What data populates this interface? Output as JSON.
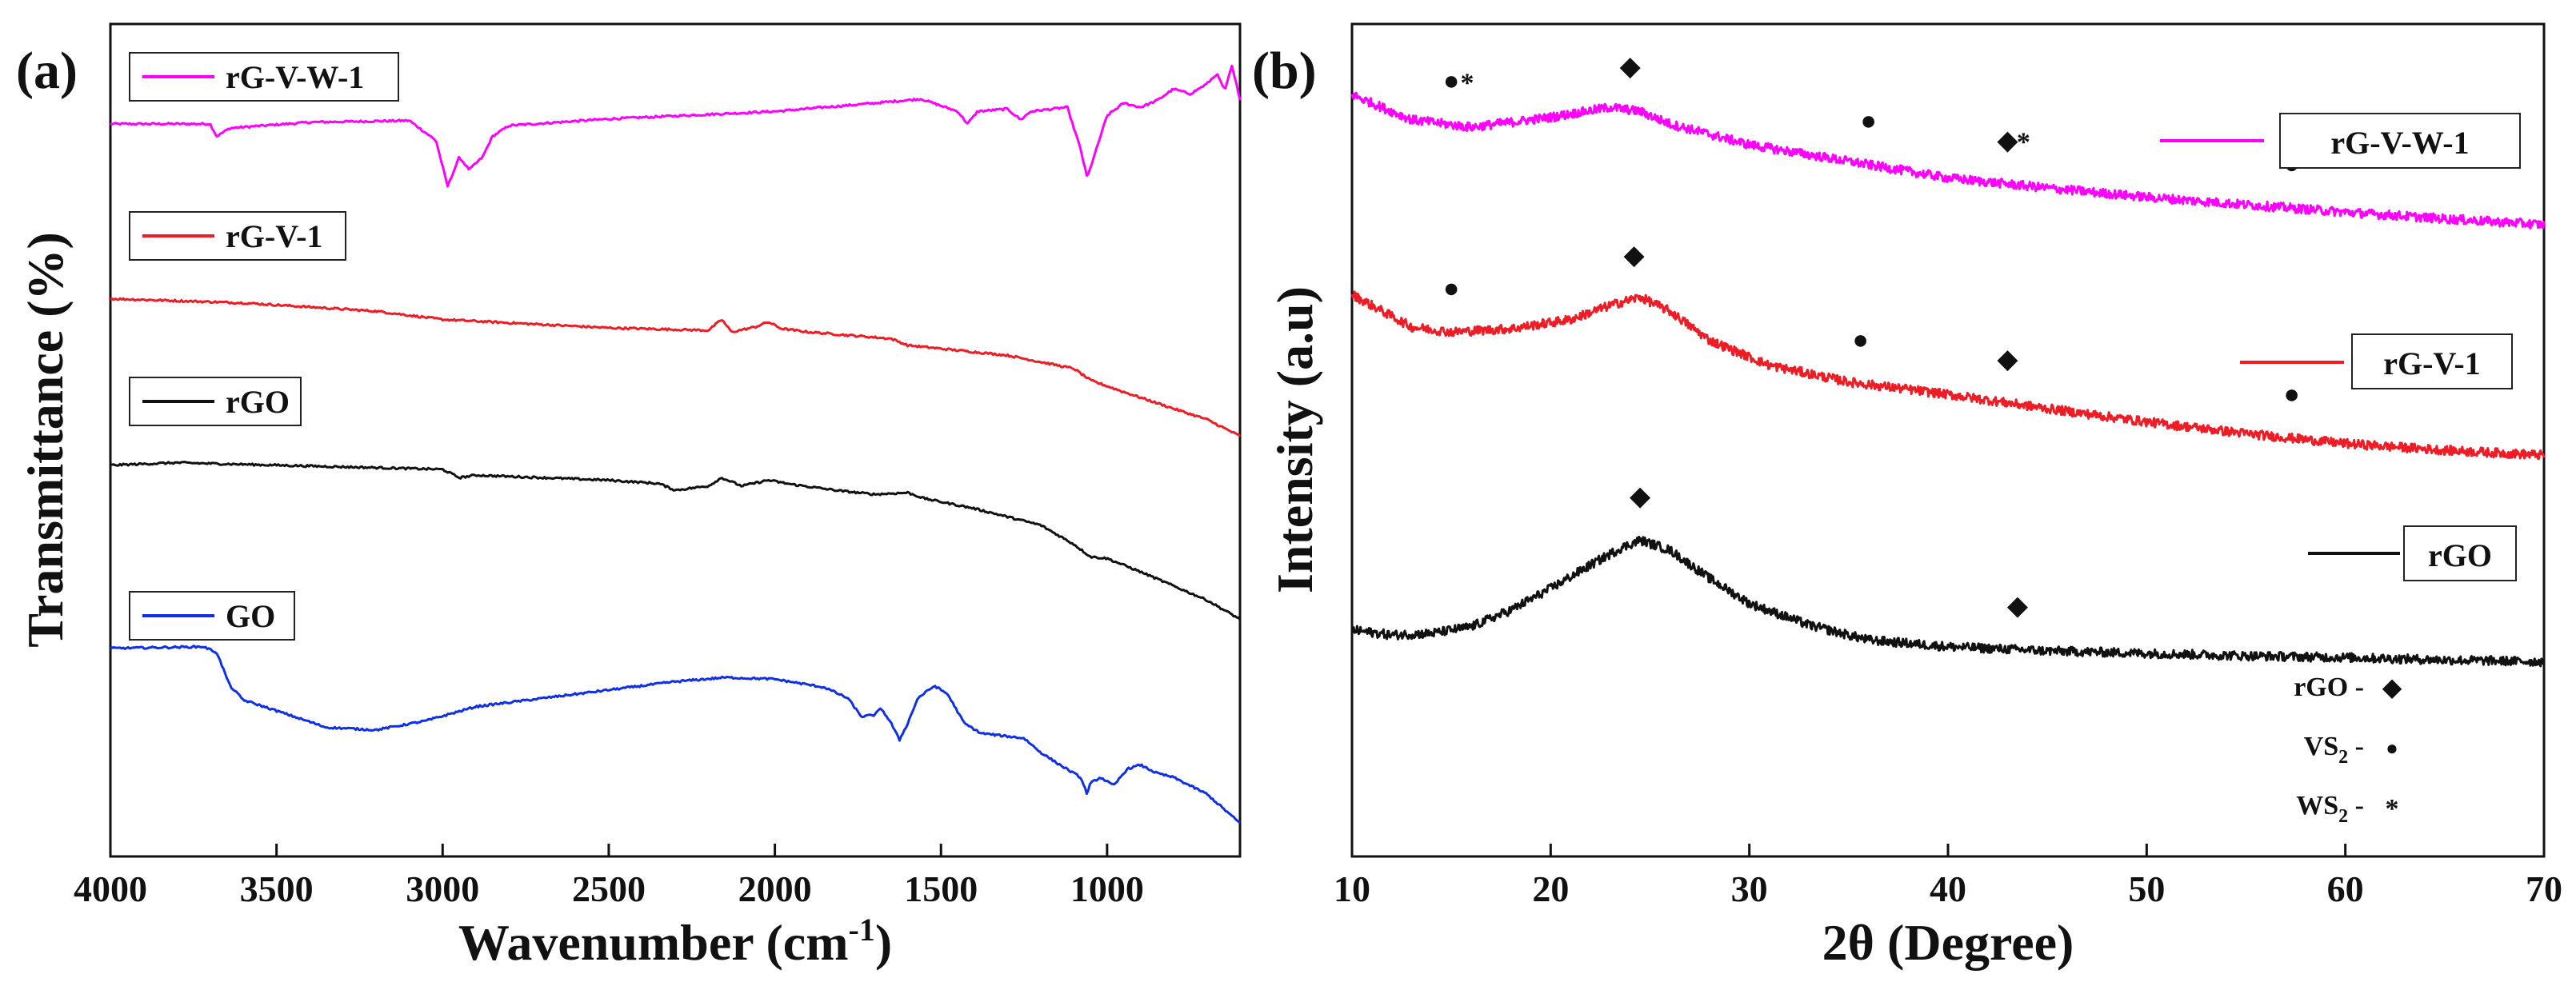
{
  "colors": {
    "rG-V-W-1": "#ff00ff",
    "rG-V-1": "#ee1c25",
    "rGO": "#111111",
    "GO": "#1030e8"
  },
  "chart_data": [
    {
      "panel": "(a)",
      "type": "line",
      "title": "",
      "xlabel": "Wavenumber (cm",
      "xlabel_sup": "-1",
      "xlabel_end": ")",
      "ylabel": "Transmittance (%)",
      "xlim": [
        4000,
        600
      ],
      "xticks": [
        4000,
        3500,
        3000,
        2500,
        2000,
        1500,
        1000
      ],
      "xtick_labels": [
        "4000",
        "3500",
        "3000",
        "2500",
        "2000",
        "1500",
        "1000"
      ],
      "yticks": [],
      "legend": [
        "rG-V-W-1",
        "rG-V-1",
        "rGO",
        "GO"
      ],
      "series": [
        {
          "name": "rG-V-W-1",
          "offset": 88,
          "points": [
            [
              4000,
              88
            ],
            [
              3700,
              88
            ],
            [
              3680,
              86.5
            ],
            [
              3640,
              87.5
            ],
            [
              3400,
              88.2
            ],
            [
              3100,
              88.4
            ],
            [
              3020,
              86
            ],
            [
              2985,
              80.5
            ],
            [
              2950,
              84
            ],
            [
              2920,
              82.5
            ],
            [
              2880,
              84
            ],
            [
              2850,
              86.5
            ],
            [
              2800,
              87.8
            ],
            [
              2500,
              88.6
            ],
            [
              2000,
              89.5
            ],
            [
              1700,
              90.5
            ],
            [
              1560,
              91
            ],
            [
              1450,
              89.5
            ],
            [
              1420,
              88
            ],
            [
              1390,
              89.5
            ],
            [
              1300,
              89.8
            ],
            [
              1260,
              88.5
            ],
            [
              1230,
              89.5
            ],
            [
              1120,
              90
            ],
            [
              1080,
              85
            ],
            [
              1060,
              81.5
            ],
            [
              1040,
              84
            ],
            [
              1000,
              89
            ],
            [
              950,
              90.5
            ],
            [
              900,
              90
            ],
            [
              850,
              90.8
            ],
            [
              800,
              92.2
            ],
            [
              750,
              91.6
            ],
            [
              700,
              92.8
            ],
            [
              670,
              94
            ],
            [
              645,
              92
            ],
            [
              625,
              95
            ],
            [
              600,
              91
            ]
          ]
        },
        {
          "name": "rG-V-1",
          "offset": 64,
          "points": [
            [
              4000,
              67
            ],
            [
              3600,
              66.5
            ],
            [
              3200,
              65.5
            ],
            [
              3000,
              64.5
            ],
            [
              2900,
              64.3
            ],
            [
              2500,
              63.5
            ],
            [
              2200,
              63.2
            ],
            [
              2160,
              64.5
            ],
            [
              2130,
              63
            ],
            [
              2060,
              63.6
            ],
            [
              2020,
              64.2
            ],
            [
              1980,
              63.4
            ],
            [
              1900,
              63
            ],
            [
              1650,
              62.2
            ],
            [
              1600,
              61.4
            ],
            [
              1300,
              60.2
            ],
            [
              1100,
              58.6
            ],
            [
              1050,
              57.2
            ],
            [
              950,
              55.8
            ],
            [
              800,
              53.8
            ],
            [
              700,
              52.5
            ],
            [
              600,
              50.5
            ]
          ]
        },
        {
          "name": "rGO",
          "offset": 44,
          "points": [
            [
              4000,
              47
            ],
            [
              3800,
              47.3
            ],
            [
              3500,
              47
            ],
            [
              3000,
              46.5
            ],
            [
              2950,
              45.5
            ],
            [
              2900,
              45.8
            ],
            [
              2500,
              45.2
            ],
            [
              2350,
              44.8
            ],
            [
              2300,
              44
            ],
            [
              2200,
              44.5
            ],
            [
              2160,
              45.5
            ],
            [
              2100,
              44.5
            ],
            [
              2020,
              45.2
            ],
            [
              1950,
              44.7
            ],
            [
              1800,
              43.9
            ],
            [
              1700,
              43.5
            ],
            [
              1600,
              43.7
            ],
            [
              1550,
              43
            ],
            [
              1400,
              41.8
            ],
            [
              1200,
              39.8
            ],
            [
              1100,
              37.5
            ],
            [
              1050,
              36
            ],
            [
              1000,
              35.8
            ],
            [
              900,
              34.2
            ],
            [
              800,
              32.5
            ],
            [
              700,
              30.8
            ],
            [
              600,
              28.5
            ]
          ]
        },
        {
          "name": "GO",
          "offset": 20,
          "points": [
            [
              4000,
              25
            ],
            [
              3720,
              25.2
            ],
            [
              3680,
              24.5
            ],
            [
              3640,
              20.5
            ],
            [
              3600,
              18.8
            ],
            [
              3500,
              17.5
            ],
            [
              3350,
              15.5
            ],
            [
              3200,
              15.2
            ],
            [
              3050,
              16.3
            ],
            [
              2900,
              18
            ],
            [
              2600,
              19.5
            ],
            [
              2300,
              21
            ],
            [
              2150,
              21.5
            ],
            [
              2000,
              21.3
            ],
            [
              1850,
              20.3
            ],
            [
              1780,
              19
            ],
            [
              1740,
              16.8
            ],
            [
              1700,
              17
            ],
            [
              1680,
              17.8
            ],
            [
              1650,
              16
            ],
            [
              1625,
              14
            ],
            [
              1600,
              16
            ],
            [
              1570,
              19
            ],
            [
              1520,
              20.5
            ],
            [
              1480,
              19.5
            ],
            [
              1430,
              16
            ],
            [
              1380,
              14.8
            ],
            [
              1250,
              14.2
            ],
            [
              1200,
              12.5
            ],
            [
              1150,
              11.2
            ],
            [
              1080,
              9.5
            ],
            [
              1060,
              7.5
            ],
            [
              1050,
              8.8
            ],
            [
              1020,
              9.5
            ],
            [
              980,
              8.5
            ],
            [
              940,
              10.5
            ],
            [
              900,
              11
            ],
            [
              850,
              10
            ],
            [
              800,
              9.5
            ],
            [
              700,
              7.5
            ],
            [
              600,
              4
            ]
          ]
        }
      ]
    },
    {
      "panel": "(b)",
      "type": "line",
      "title": "",
      "xlabel": "2θ (Degree)",
      "ylabel": "Intensity (a.u)",
      "xlim": [
        10,
        70
      ],
      "xticks": [
        10,
        20,
        30,
        40,
        50,
        60,
        70
      ],
      "xtick_labels": [
        "10",
        "20",
        "30",
        "40",
        "50",
        "60",
        "70"
      ],
      "yticks": [],
      "legend": [
        "rG-V-W-1",
        "rG-V-1",
        "rGO"
      ],
      "series": [
        {
          "name": "rG-V-W-1",
          "points": [
            [
              10,
              91.5
            ],
            [
              13,
              88.5
            ],
            [
              16,
              87.6
            ],
            [
              20,
              88.8
            ],
            [
              23,
              90
            ],
            [
              24.5,
              89.5
            ],
            [
              26,
              88
            ],
            [
              30,
              85.5
            ],
            [
              35,
              83.5
            ],
            [
              40,
              81.5
            ],
            [
              45,
              80.3
            ],
            [
              50,
              79.2
            ],
            [
              55,
              78.3
            ],
            [
              60,
              77.4
            ],
            [
              65,
              76.6
            ],
            [
              70,
              75.9
            ]
          ]
        },
        {
          "name": "rG-V-1",
          "points": [
            [
              10,
              67.5
            ],
            [
              13,
              63.6
            ],
            [
              15,
              63
            ],
            [
              18,
              63.4
            ],
            [
              21,
              64.5
            ],
            [
              23,
              66.2
            ],
            [
              24.5,
              67.2
            ],
            [
              26,
              65.5
            ],
            [
              28,
              62
            ],
            [
              31,
              59
            ],
            [
              35,
              57
            ],
            [
              40,
              55.5
            ],
            [
              45,
              53.8
            ],
            [
              50,
              52.2
            ],
            [
              55,
              50.8
            ],
            [
              60,
              49.6
            ],
            [
              65,
              48.8
            ],
            [
              70,
              48.2
            ]
          ]
        },
        {
          "name": "rGO",
          "points": [
            [
              10,
              27.2
            ],
            [
              12,
              26.6
            ],
            [
              14,
              26.8
            ],
            [
              16,
              27.6
            ],
            [
              18,
              29.6
            ],
            [
              20,
              32.2
            ],
            [
              22,
              35
            ],
            [
              23.5,
              37
            ],
            [
              24.5,
              38
            ],
            [
              26,
              36.8
            ],
            [
              28,
              33.4
            ],
            [
              30,
              30.4
            ],
            [
              33,
              27.8
            ],
            [
              36,
              26
            ],
            [
              40,
              25.2
            ],
            [
              45,
              24.7
            ],
            [
              50,
              24.4
            ],
            [
              55,
              24.1
            ],
            [
              60,
              23.9
            ],
            [
              65,
              23.6
            ],
            [
              70,
              23.4
            ]
          ]
        }
      ],
      "markers": [
        {
          "series": "rG-V-W-1",
          "symbols": [
            {
              "x": 15,
              "s": "●"
            },
            {
              "x": 15.8,
              "s": "*"
            },
            {
              "x": 24,
              "s": "◆"
            },
            {
              "x": 36,
              "s": "●"
            },
            {
              "x": 43,
              "s": "◆"
            },
            {
              "x": 43.8,
              "s": "*"
            },
            {
              "x": 57.3,
              "s": "●"
            }
          ]
        },
        {
          "series": "rG-V-1",
          "symbols": [
            {
              "x": 15,
              "s": "●"
            },
            {
              "x": 24.2,
              "s": "◆"
            },
            {
              "x": 35.6,
              "s": "●"
            },
            {
              "x": 43,
              "s": "◆"
            },
            {
              "x": 57.3,
              "s": "●"
            }
          ]
        },
        {
          "series": "rGO",
          "symbols": [
            {
              "x": 24.5,
              "s": "◆"
            },
            {
              "x": 43.5,
              "s": "◆"
            }
          ]
        }
      ],
      "phase_key": [
        {
          "label": "rGO -",
          "symbol": "◆"
        },
        {
          "label": "VS",
          "sub": "2",
          "label_end": " -",
          "symbol": "●"
        },
        {
          "label": "WS",
          "sub": "2",
          "label_end": " -",
          "symbol": "*"
        }
      ]
    }
  ]
}
